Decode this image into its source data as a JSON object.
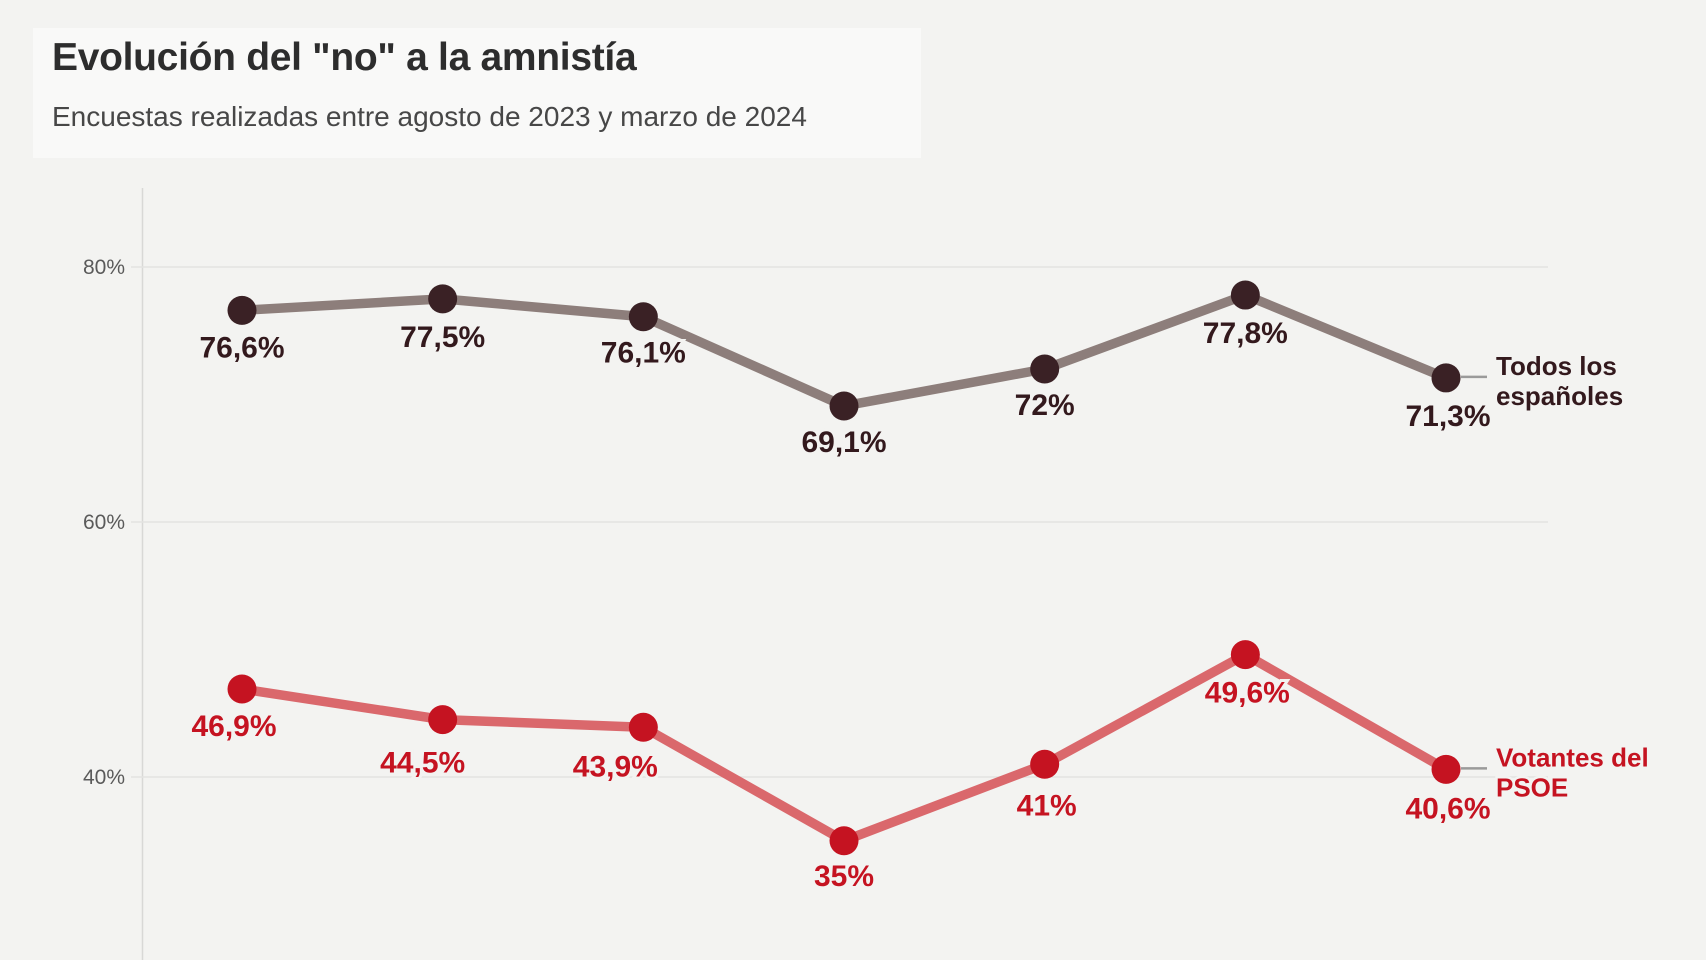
{
  "header": {
    "title": "Evolución del \"no\" a la amnistía",
    "subtitle": "Encuestas realizadas entre agosto de 2023 y marzo de 2024"
  },
  "colors": {
    "page_bg": "#f3f3f1",
    "title_box_bg": "#f9f9f8",
    "title_text": "#2d2d2d",
    "subtitle_text": "#474747",
    "grid_line": "#e3e3e1",
    "axis_line": "#d8d8d6",
    "tick_label": "#5a5a5a",
    "legend_dash": "#9a9a9a",
    "label_halo": "#f3f3f1"
  },
  "chart_data": {
    "type": "line",
    "title": "Evolución del \"no\" a la amnistía",
    "subtitle": "Encuestas realizadas entre agosto de 2023 y marzo de 2024",
    "point_count": 7,
    "grid": "horizontal-only",
    "legend_position": "right-of-last-point",
    "ylim": [
      26,
      86
    ],
    "y_ticks": [
      {
        "label": "80%",
        "value": 80
      },
      {
        "label": "60%",
        "value": 60
      },
      {
        "label": "40%",
        "value": 40
      }
    ],
    "series": [
      {
        "name": "Todos los españoles",
        "legend_lines": [
          "Todos los",
          "españoles"
        ],
        "dot_color": "#3a2125",
        "line_color": "#8d7e7b",
        "label_color": "#33191d",
        "values": [
          76.6,
          77.5,
          76.1,
          69.1,
          72.0,
          77.8,
          71.3
        ],
        "value_labels": [
          "76,6%",
          "77,5%",
          "76,1%",
          "69,1%",
          "72%",
          "77,8%",
          "71,3%"
        ]
      },
      {
        "name": "Votantes del PSOE",
        "legend_lines": [
          "Votantes del",
          "PSOE"
        ],
        "dot_color": "#c51321",
        "line_color": "#da686c",
        "label_color": "#c51321",
        "values": [
          46.9,
          44.5,
          43.9,
          35.0,
          41.0,
          49.6,
          40.6
        ],
        "value_labels": [
          "46,9%",
          "44,5%",
          "43,9%",
          "35%",
          "41%",
          "49,6%",
          "40,6%"
        ]
      }
    ]
  }
}
